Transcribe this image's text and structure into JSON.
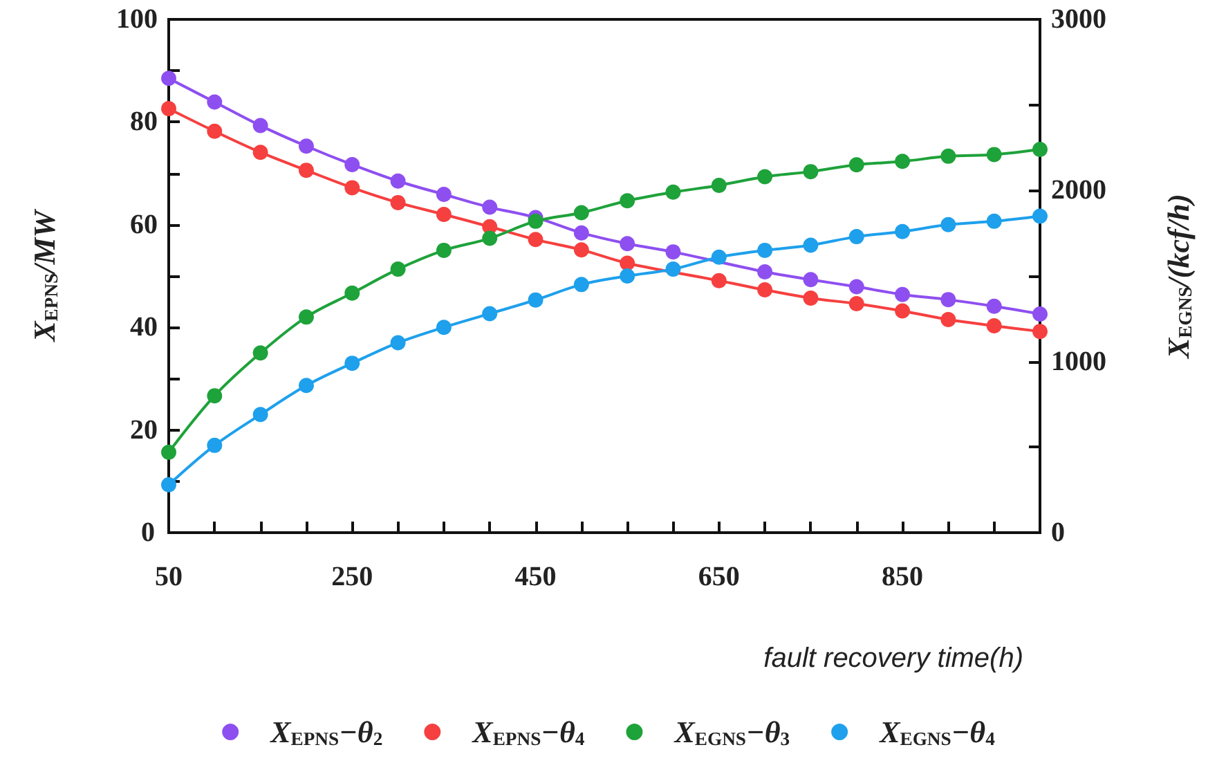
{
  "chart_data": {
    "type": "line",
    "xlabel": "fault recovery time(h)",
    "ylabel": "X$_{EPNS}$/MW",
    "y2label": "X$_{EGNS}$/(kcf/h)",
    "x": [
      50,
      100,
      150,
      200,
      250,
      300,
      350,
      400,
      450,
      500,
      550,
      600,
      650,
      700,
      750,
      800,
      850,
      900,
      950,
      1000
    ],
    "series": [
      {
        "name": "X$_{EPNS}$−θ$_{2}$",
        "color": "#8e4ff0",
        "values": [
          88.5,
          83.9,
          79.3,
          75.3,
          71.7,
          68.5,
          65.9,
          63.4,
          61.4,
          58.4,
          56.3,
          54.7,
          null,
          50.8,
          49.3,
          47.9,
          46.4,
          45.4,
          44.1,
          42.6
        ]
      },
      {
        "name": "X$_{EPNS}$−θ$_{4}$",
        "color": "#f5403f",
        "values": [
          82.6,
          78.2,
          74.1,
          70.6,
          67.2,
          64.3,
          62.0,
          59.6,
          57.1,
          55.1,
          52.5,
          null,
          49.1,
          47.3,
          45.7,
          44.6,
          43.2,
          41.5,
          40.3,
          39.2
        ]
      },
      {
        "name": "X$_{EGNS}$−θ$_{3}$",
        "color": "#1ea23a",
        "axis": "y2",
        "values": [
          470,
          800,
          1050,
          1260,
          1400,
          1540,
          1650,
          1720,
          1820,
          1870,
          1940,
          1990,
          2030,
          2080,
          2110,
          2150,
          2170,
          2200,
          2210,
          2240
        ]
      },
      {
        "name": "X$_{EGNS}$−θ$_{4}$",
        "color": "#1ea0ec",
        "axis": "y2",
        "values": [
          280,
          510,
          690,
          860,
          990,
          1110,
          1200,
          1280,
          1360,
          1450,
          1500,
          1540,
          1610,
          1650,
          1680,
          1730,
          1760,
          1800,
          1820,
          1850
        ]
      }
    ],
    "xlim": [
      50,
      1000
    ],
    "xticks": [
      50,
      {
        "value": 100,
        "label": null
      },
      {
        "value": 150,
        "label": null
      },
      {
        "value": 200,
        "label": null
      },
      250,
      {
        "value": 300,
        "label": null
      },
      {
        "value": 350,
        "label": null
      },
      {
        "value": 400,
        "label": null
      },
      450,
      {
        "value": 500,
        "label": null
      },
      {
        "value": 550,
        "label": null
      },
      {
        "value": 600,
        "label": null
      },
      650,
      {
        "value": 700,
        "label": null
      },
      {
        "value": 750,
        "label": null
      },
      {
        "value": 800,
        "label": null
      },
      850,
      {
        "value": 900,
        "label": null
      },
      {
        "value": 950,
        "label": null
      },
      {
        "value": 1000,
        "label": null
      }
    ],
    "ylim": [
      0,
      100
    ],
    "yticks": [
      0,
      {
        "value": 10,
        "label": null
      },
      20,
      {
        "value": 30,
        "label": null
      },
      40,
      {
        "value": 50,
        "label": null
      },
      60,
      {
        "value": 70,
        "label": null
      },
      80,
      {
        "value": 90,
        "label": null
      },
      100
    ],
    "y2lim": [
      0,
      3000
    ],
    "y2ticks": [
      0,
      {
        "value": 500,
        "label": null
      },
      1000,
      {
        "value": 1500,
        "label": null
      },
      2000,
      {
        "value": 2500,
        "label": null
      },
      3000
    ],
    "grid": false,
    "legend": "bottom",
    "marker": "circle",
    "line_style": "solid"
  }
}
